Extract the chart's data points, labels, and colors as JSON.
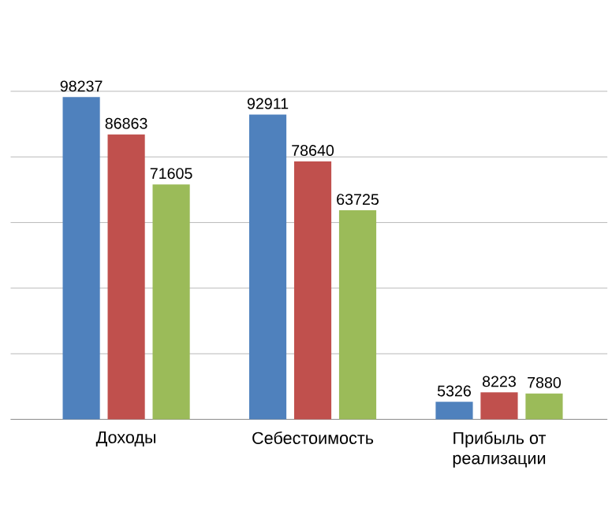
{
  "chart_data": {
    "type": "bar",
    "categories": [
      "Доходы",
      "Себестоимость",
      "Прибыль от реализации"
    ],
    "series": [
      {
        "color": "#4f81bd",
        "values": [
          98237,
          92911,
          5326
        ]
      },
      {
        "color": "#c0504d",
        "values": [
          86863,
          78640,
          8223
        ]
      },
      {
        "color": "#9bbb59",
        "values": [
          71605,
          63725,
          7880
        ]
      }
    ],
    "ylim": [
      0,
      100000
    ],
    "yticks": [
      {
        "value": 0,
        "label": null
      },
      {
        "value": 20000,
        "label": null
      },
      {
        "value": 40000,
        "label": null
      },
      {
        "value": 60000,
        "label": null
      },
      {
        "value": 80000,
        "label": null
      },
      {
        "value": 100000,
        "label": null
      }
    ],
    "grid": "y",
    "data_labels": true,
    "tick_labels": "x"
  }
}
